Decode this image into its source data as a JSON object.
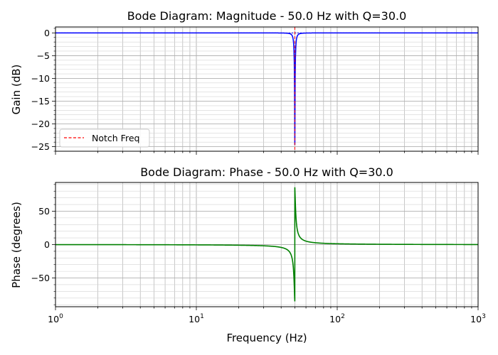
{
  "chart_data": [
    {
      "type": "line",
      "title": "Bode Diagram: Magnitude - 50.0 Hz with Q=30.0",
      "xlabel": "",
      "ylabel": "Gain (dB)",
      "x_scale": "log",
      "xlim": [
        1,
        1000
      ],
      "ylim": [
        -26,
        1.3
      ],
      "yticks": [
        0,
        -5,
        -10,
        -15,
        -20,
        -25
      ],
      "grid": true,
      "legend": {
        "placement": "lower-left",
        "entries": [
          "Notch Freq"
        ]
      },
      "notch_frequency": 50.0,
      "q_factor": 30.0,
      "series": [
        {
          "color": "#0000ff",
          "min_value": -24.5,
          "at_frequency": 50.0
        }
      ],
      "vline": {
        "name": "Notch Freq",
        "x": 50.0,
        "color": "#ff0000",
        "style": "dashed"
      },
      "hline": {
        "y": 0,
        "color": "#0000ff",
        "style": "dotted"
      }
    },
    {
      "type": "line",
      "title": "Bode Diagram: Phase - 50.0 Hz with Q=30.0",
      "xlabel": "Frequency (Hz)",
      "ylabel": "Phase (degrees)",
      "x_scale": "log",
      "xlim": [
        1,
        1000
      ],
      "ylim": [
        -93,
        93
      ],
      "yticks": [
        50,
        0,
        -50
      ],
      "xticks": [
        "10^0",
        "10^1",
        "10^2",
        "10^3"
      ],
      "grid": true,
      "notch_frequency": 50.0,
      "q_factor": 30.0,
      "series": [
        {
          "color": "#008000",
          "range": [
            -85,
            85
          ]
        }
      ]
    }
  ]
}
